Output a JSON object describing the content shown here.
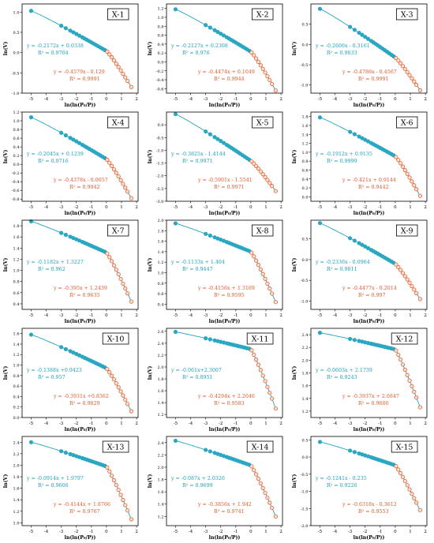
{
  "figure": {
    "xlabel": "ln(ln(P₀/P))",
    "ylabel": "ln(V)",
    "colors": {
      "low_fit": "#2aa7c2",
      "high_fit": "#e4602f",
      "text_low": "#1d9fb9",
      "text_high": "#e05a2a",
      "line": "#1fa3bd"
    },
    "x_ticks": [
      "-5",
      "-4",
      "-3",
      "-2",
      "-1",
      "0",
      "1",
      "2"
    ]
  },
  "chart_data": [
    {
      "type": "scatter",
      "title": "X-1",
      "ylim": [
        -1.0,
        1.2
      ],
      "yticks": [
        "-1.0",
        "-0.5",
        "0.0",
        "0.5",
        "1.0"
      ],
      "yticks_v": [
        -1.0,
        -0.5,
        0.0,
        0.5,
        1.0
      ],
      "fit_low": {
        "equation": "y = -0.2172x + 0.0338",
        "r2": "R² = 0.9704",
        "slope": -0.2172,
        "intercept": 0.0338
      },
      "fit_high": {
        "equation": "y = -0.4579x - 0.129",
        "r2": "R² = 0.9991",
        "slope": -0.4579,
        "intercept": -0.129
      },
      "y_start": 1.03,
      "y_split": 0.04,
      "y_end": -0.85
    },
    {
      "type": "scatter",
      "title": "X-2",
      "ylim": [
        -0.7,
        1.3
      ],
      "yticks": [
        "-0.6",
        "-0.4",
        "-0.2",
        "0.0",
        "0.2",
        "0.4",
        "0.6",
        "0.8",
        "1.0",
        "1.2"
      ],
      "yticks_v": [
        -0.6,
        -0.4,
        -0.2,
        0.0,
        0.2,
        0.4,
        0.6,
        0.8,
        1.0,
        1.2
      ],
      "fit_low": {
        "equation": "y = -0.2127x + 0.2308",
        "r2": "R² = 0.976",
        "slope": -0.2127,
        "intercept": 0.2308
      },
      "fit_high": {
        "equation": "y = -0.4474x + 0.1049",
        "r2": "R² = 0.9944",
        "slope": -0.4474,
        "intercept": 0.1049
      },
      "y_start": 1.18,
      "y_split": 0.23,
      "y_end": -0.64
    },
    {
      "type": "scatter",
      "title": "X-3",
      "ylim": [
        -1.2,
        1.0
      ],
      "yticks": [
        "-1.0",
        "-0.5",
        "0.0",
        "0.5"
      ],
      "yticks_v": [
        -1.0,
        -0.5,
        0.0,
        0.5
      ],
      "fit_low": {
        "equation": "y = -0.2606x - 0.3161",
        "r2": "R² = 0.9833",
        "slope": -0.2606,
        "intercept": -0.3161
      },
      "fit_high": {
        "equation": "y = -0.4786x - 0.4567",
        "r2": "R² = 0.9991",
        "slope": -0.4786,
        "intercept": -0.4567
      },
      "y_start": 0.88,
      "y_split": -0.32,
      "y_end": -1.13
    },
    {
      "type": "scatter",
      "title": "X-4",
      "ylim": [
        -0.85,
        1.2
      ],
      "yticks": [
        "-0.8",
        "-0.6",
        "-0.4",
        "-0.2",
        "0.0",
        "0.2",
        "0.4",
        "0.6",
        "0.8",
        "1.0",
        "1.2"
      ],
      "yticks_v": [
        -0.8,
        -0.6,
        -0.4,
        -0.2,
        0.0,
        0.2,
        0.4,
        0.6,
        0.8,
        1.0,
        1.2
      ],
      "fit_low": {
        "equation": "y = -0.2045x + 0.1239",
        "r2": "R² = 0.9716",
        "slope": -0.2045,
        "intercept": 0.1239
      },
      "fit_high": {
        "equation": "y = -0.4378x - 0.0057",
        "r2": "R² = 0.9942",
        "slope": -0.4378,
        "intercept": -0.0057
      },
      "y_start": 1.08,
      "y_split": 0.12,
      "y_end": -0.78
    },
    {
      "type": "scatter",
      "title": "X-5",
      "ylim": [
        -3.0,
        0.5
      ],
      "yticks": [
        "-3.0",
        "-2.5",
        "-2.0",
        "-1.5",
        "-1.0",
        "-0.5",
        "0.0"
      ],
      "yticks_v": [
        -3.0,
        -2.5,
        -2.0,
        -1.5,
        -1.0,
        -0.5,
        0.0
      ],
      "fit_low": {
        "equation": "y = -0.3825x - 1.4144",
        "r2": "R² = 0.9971",
        "slope": -0.3825,
        "intercept": -1.4144
      },
      "fit_high": {
        "equation": "y = -0.5901x - 1.5541",
        "r2": "R² = 0.9971",
        "slope": -0.5901,
        "intercept": -1.5541
      },
      "y_start": 0.42,
      "y_split": -1.41,
      "y_end": -2.6
    },
    {
      "type": "scatter",
      "title": "X-6",
      "ylim": [
        -0.1,
        1.9
      ],
      "yticks": [
        "0.0",
        "0.2",
        "0.4",
        "0.6",
        "0.8",
        "1.0",
        "1.2",
        "1.4",
        "1.6",
        "1.8"
      ],
      "yticks_v": [
        0.0,
        0.2,
        0.4,
        0.6,
        0.8,
        1.0,
        1.2,
        1.4,
        1.6,
        1.8
      ],
      "fit_low": {
        "equation": "y = -0.1912x + 0.9135",
        "r2": "R² = 0.9999",
        "slope": -0.1912,
        "intercept": 0.9135
      },
      "fit_high": {
        "equation": "y = -0.421x + 0.9144",
        "r2": "R² = 0.9442",
        "slope": -0.421,
        "intercept": 0.9144
      },
      "y_start": 1.78,
      "y_split": 0.91,
      "y_end": 0.02
    },
    {
      "type": "scatter",
      "title": "X-7",
      "ylim": [
        0.3,
        1.9
      ],
      "yticks": [
        "0.4",
        "0.6",
        "0.8",
        "1.0",
        "1.2",
        "1.4",
        "1.6",
        "1.8"
      ],
      "yticks_v": [
        0.4,
        0.6,
        0.8,
        1.0,
        1.2,
        1.4,
        1.6,
        1.8
      ],
      "fit_low": {
        "equation": "y = -0.1182x + 1.3227",
        "r2": "R² = 0.962",
        "slope": -0.1182,
        "intercept": 1.3227
      },
      "fit_high": {
        "equation": "y = -0.395x + 1.2439",
        "r2": "R² = 0.9635",
        "slope": -0.395,
        "intercept": 1.2439
      },
      "y_start": 1.88,
      "y_split": 1.32,
      "y_end": 0.44
    },
    {
      "type": "scatter",
      "title": "X-8",
      "ylim": [
        0.3,
        2.0
      ],
      "yticks": [
        "0.4",
        "0.6",
        "0.8",
        "1.0",
        "1.2",
        "1.4",
        "1.6",
        "1.8",
        "2.0"
      ],
      "yticks_v": [
        0.4,
        0.6,
        0.8,
        1.0,
        1.2,
        1.4,
        1.6,
        1.8,
        2.0
      ],
      "fit_low": {
        "equation": "y = -0.1133x + 1.404",
        "r2": "R² = 0.9447",
        "slope": -0.1133,
        "intercept": 1.404
      },
      "fit_high": {
        "equation": "y = -0.4156x + 1.3169",
        "r2": "R² = 0.9595",
        "slope": -0.4156,
        "intercept": 1.3169
      },
      "y_start": 1.94,
      "y_split": 1.4,
      "y_end": 0.44
    },
    {
      "type": "scatter",
      "title": "X-9",
      "ylim": [
        -1.2,
        0.95
      ],
      "yticks": [
        "-1.0",
        "-0.5",
        "0.0",
        "0.5"
      ],
      "yticks_v": [
        -1.0,
        -0.5,
        0.0,
        0.5
      ],
      "fit_low": {
        "equation": "y = -0.2336x - 0.0964",
        "r2": "R² = 0.9811",
        "slope": -0.2336,
        "intercept": -0.0964
      },
      "fit_high": {
        "equation": "y = -0.4477x - 0.2014",
        "r2": "R² = 0.997",
        "slope": -0.4477,
        "intercept": -0.2014
      },
      "y_start": 0.88,
      "y_split": -0.1,
      "y_end": -0.95
    },
    {
      "type": "scatter",
      "title": "X-10",
      "ylim": [
        0.0,
        1.7
      ],
      "yticks": [
        "0.0",
        "0.2",
        "0.4",
        "0.6",
        "0.8",
        "1.0",
        "1.2",
        "1.4",
        "1.6"
      ],
      "yticks_v": [
        0.0,
        0.2,
        0.4,
        0.6,
        0.8,
        1.0,
        1.2,
        1.4,
        1.6
      ],
      "fit_low": {
        "equation": "y = -0.1388x +0.9423",
        "r2": "R² = 0.957",
        "slope": -0.1388,
        "intercept": 0.9423
      },
      "fit_high": {
        "equation": "y = -0.3931x +0.8362",
        "r2": "R² = 0.9829",
        "slope": -0.3931,
        "intercept": 0.8362
      },
      "y_start": 1.58,
      "y_split": 0.94,
      "y_end": 0.12
    },
    {
      "type": "scatter",
      "title": "X-11",
      "ylim": [
        1.15,
        2.65
      ],
      "yticks": [
        "1.2",
        "1.4",
        "1.6",
        "1.8",
        "2.0",
        "2.2",
        "2.4",
        "2.6"
      ],
      "yticks_v": [
        1.2,
        1.4,
        1.6,
        1.8,
        2.0,
        2.2,
        2.4,
        2.6
      ],
      "fit_low": {
        "equation": "y = -0.061x+2.3007",
        "r2": "R² = 0.8951",
        "slope": -0.061,
        "intercept": 2.3007
      },
      "fit_high": {
        "equation": "y = -0.4294x + 2.2046",
        "r2": "R² = 0.9583",
        "slope": -0.4294,
        "intercept": 2.2046
      },
      "y_start": 2.59,
      "y_split": 2.3,
      "y_end": 1.3
    },
    {
      "type": "scatter",
      "title": "X-12",
      "ylim": [
        1.1,
        2.5
      ],
      "yticks": [
        "1.2",
        "1.4",
        "1.6",
        "1.8",
        "2.0",
        "2.2",
        "2.4"
      ],
      "yticks_v": [
        1.2,
        1.4,
        1.6,
        1.8,
        2.0,
        2.2,
        2.4
      ],
      "fit_low": {
        "equation": "y = -0.0603x + 2.1739",
        "r2": "R² = 0.9243",
        "slope": -0.0603,
        "intercept": 2.1739
      },
      "fit_high": {
        "equation": "y = -0.3937x + 2.0847",
        "r2": "R² = 0.9600",
        "slope": -0.3937,
        "intercept": 2.0847
      },
      "y_start": 2.43,
      "y_split": 2.17,
      "y_end": 1.26
    },
    {
      "type": "scatter",
      "title": "X-13",
      "ylim": [
        0.95,
        2.5
      ],
      "yticks": [
        "1.0",
        "1.2",
        "1.4",
        "1.6",
        "1.8",
        "2.0",
        "2.2",
        "2.4"
      ],
      "yticks_v": [
        1.0,
        1.2,
        1.4,
        1.6,
        1.8,
        2.0,
        2.2,
        2.4
      ],
      "fit_low": {
        "equation": "y = -0.0914x + 1.9797",
        "r2": "R² = 0.9606",
        "slope": -0.0914,
        "intercept": 1.9797
      },
      "fit_high": {
        "equation": "y = -0.4144x + 1.8766",
        "r2": "R² = 0.9767",
        "slope": -0.4144,
        "intercept": 1.8766
      },
      "y_start": 2.4,
      "y_split": 1.98,
      "y_end": 1.06
    },
    {
      "type": "scatter",
      "title": "X-14",
      "ylim": [
        1.05,
        2.5
      ],
      "yticks": [
        "1.2",
        "1.4",
        "1.6",
        "1.8",
        "2.0",
        "2.2",
        "2.4"
      ],
      "yticks_v": [
        1.2,
        1.4,
        1.6,
        1.8,
        2.0,
        2.2,
        2.4
      ],
      "fit_low": {
        "equation": "y = -0.087x + 2.0326",
        "r2": "R² = 0.9699",
        "slope": -0.087,
        "intercept": 2.0326
      },
      "fit_high": {
        "equation": "y = -0.3856x + 1.942",
        "r2": "R² = 0.9741",
        "slope": -0.3856,
        "intercept": 1.942
      },
      "y_start": 2.43,
      "y_split": 2.03,
      "y_end": 1.2
    },
    {
      "type": "scatter",
      "title": "X-15",
      "ylim": [
        -2.0,
        0.6
      ],
      "yticks": [
        "-2.0",
        "-1.5",
        "-1.0",
        "-0.5",
        "0.0",
        "0.5"
      ],
      "yticks_v": [
        -2.0,
        -1.5,
        -1.0,
        -0.5,
        0.0,
        0.5
      ],
      "fit_low": {
        "equation": "y = -0.1241x - 0.235",
        "r2": "R² = 0.9226",
        "slope": -0.1241,
        "intercept": -0.235
      },
      "fit_high": {
        "equation": "y = -0.6318x - 0.3612",
        "r2": "R² = 0.9553",
        "slope": -0.6318,
        "intercept": -0.3612
      },
      "y_start": 0.44,
      "y_split": -0.24,
      "y_end": -1.55
    }
  ]
}
